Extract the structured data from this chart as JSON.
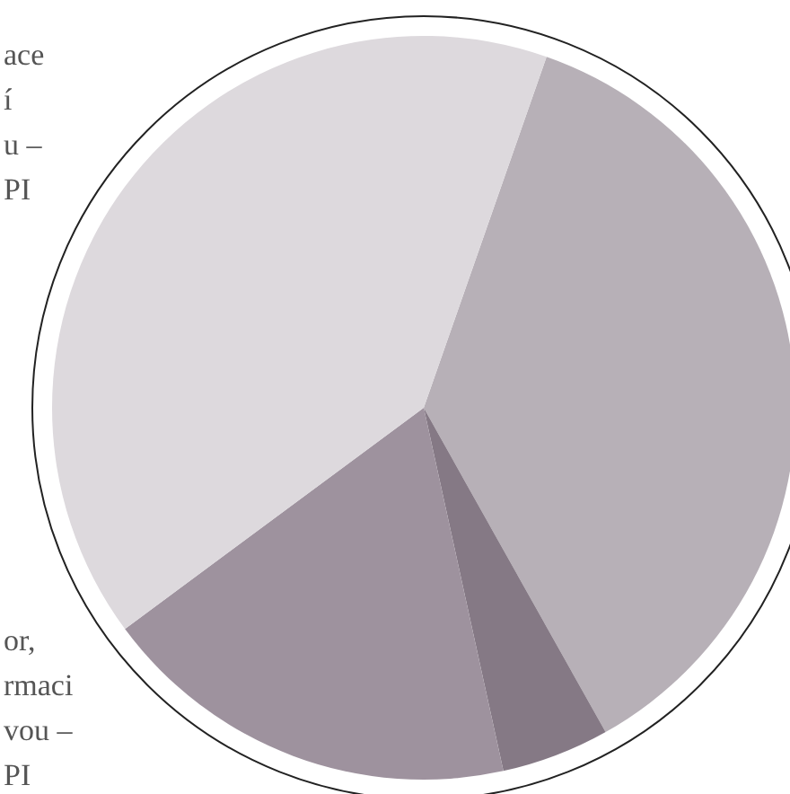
{
  "chart_data": {
    "type": "pie",
    "categories": [
      null,
      null,
      null,
      null
    ],
    "values": [
      36.5,
      4.7,
      18.3,
      40.5
    ],
    "colors": [
      "#b7b0b7",
      "#857985",
      "#9e929e",
      "#ddd9dd"
    ],
    "annotations": [
      "ace\ní\nu –\nPI",
      "or,\nrmaci\nvou –\nPI"
    ]
  }
}
